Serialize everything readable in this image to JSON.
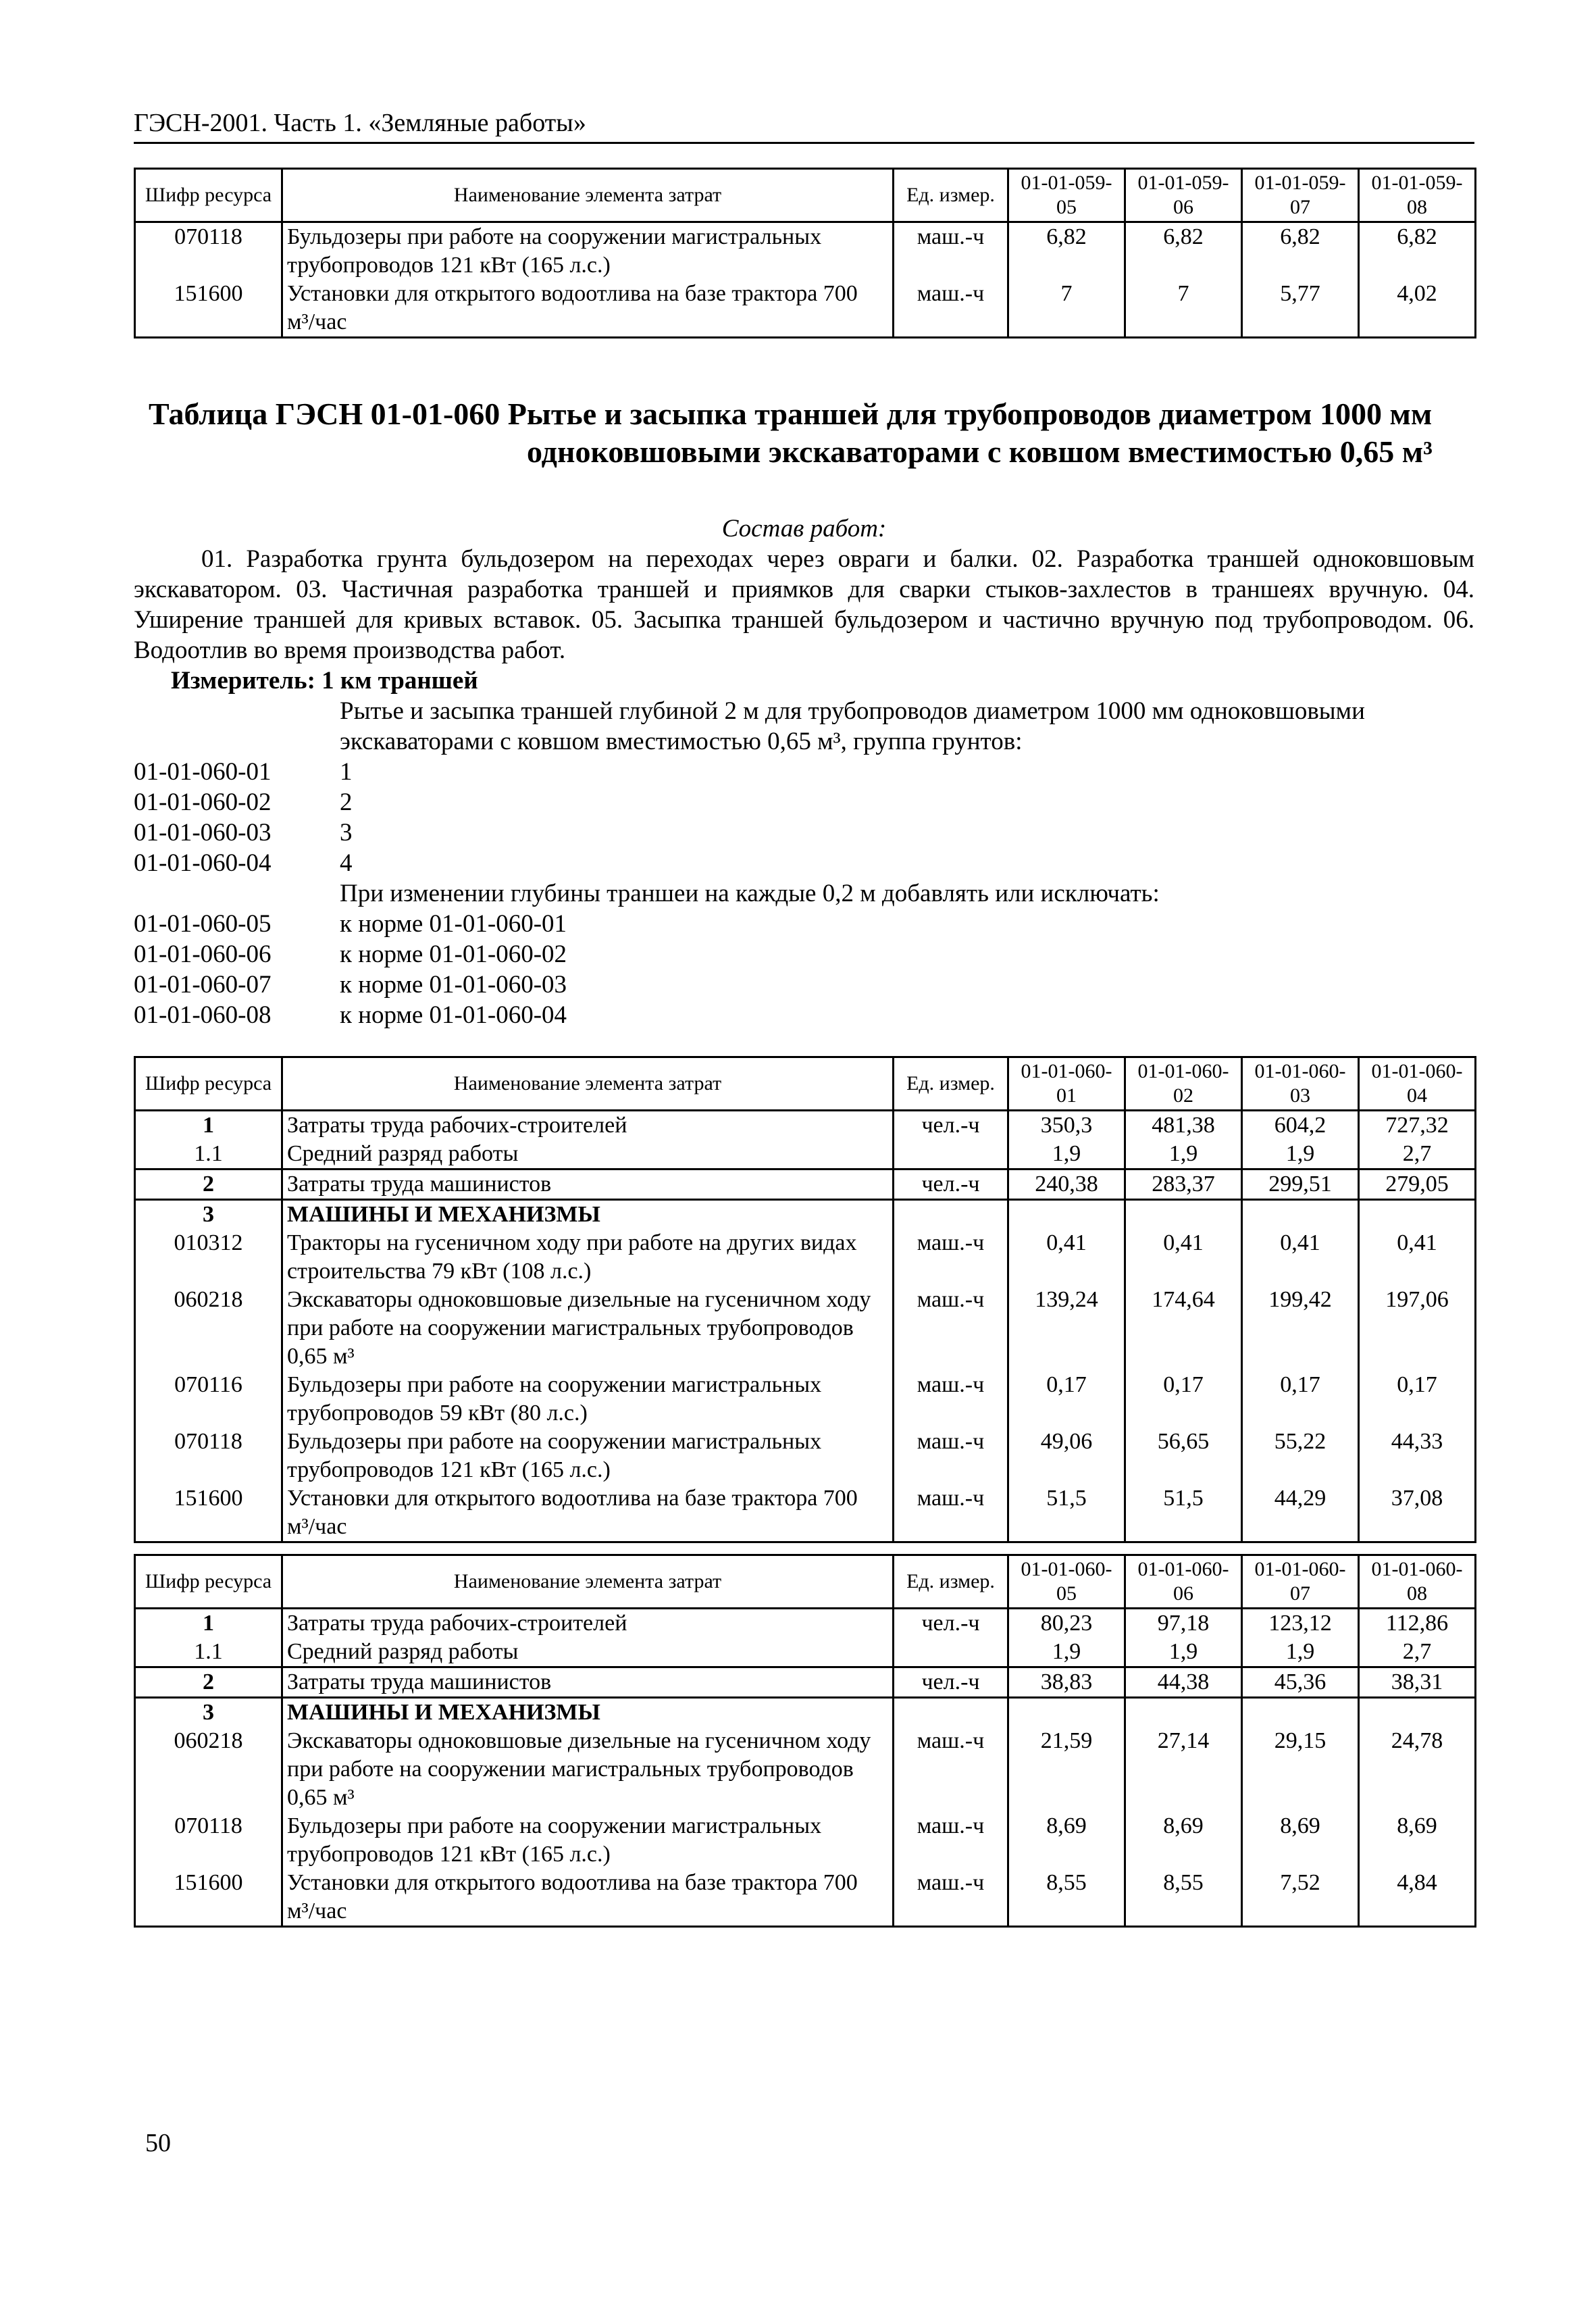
{
  "running_head": "ГЭСН-2001. Часть 1. «Земляные работы»",
  "table_header": {
    "code": "Шифр ресурса",
    "name": "Наименование элемента затрат",
    "unit": "Ед. измер."
  },
  "tables": [
    {
      "columns": [
        "01-01-059-05",
        "01-01-059-06",
        "01-01-059-07",
        "01-01-059-08"
      ],
      "groups": [
        {
          "rows": [
            {
              "code": "070118",
              "name": "Бульдозеры при работе на сооружении магистральных трубопроводов 121 кВт (165 л.с.)",
              "unit": "маш.-ч",
              "values": [
                "6,82",
                "6,82",
                "6,82",
                "6,82"
              ]
            },
            {
              "code": "151600",
              "name": "Установки для открытого водоотлива на базе трактора 700 м³/час",
              "unit": "маш.-ч",
              "values": [
                "7",
                "7",
                "5,77",
                "4,02"
              ]
            }
          ]
        }
      ]
    },
    {
      "columns": [
        "01-01-060-01",
        "01-01-060-02",
        "01-01-060-03",
        "01-01-060-04"
      ],
      "groups": [
        {
          "rows": [
            {
              "code": "1",
              "bold": true,
              "name": "Затраты труда рабочих-строителей",
              "unit": "чел.-ч",
              "values": [
                "350,3",
                "481,38",
                "604,2",
                "727,32"
              ]
            },
            {
              "code": "1.1",
              "name": "Средний разряд работы",
              "unit": "",
              "values": [
                "1,9",
                "1,9",
                "1,9",
                "2,7"
              ]
            }
          ]
        },
        {
          "rows": [
            {
              "code": "2",
              "bold": true,
              "name": "Затраты труда машинистов",
              "unit": "чел.-ч",
              "values": [
                "240,38",
                "283,37",
                "299,51",
                "279,05"
              ]
            }
          ]
        },
        {
          "rows": [
            {
              "code": "3",
              "bold": true,
              "name": "МАШИНЫ И МЕХАНИЗМЫ",
              "name_bold": true,
              "unit": "",
              "values": [
                "",
                "",
                "",
                ""
              ]
            },
            {
              "code": "010312",
              "name": "Тракторы на гусеничном ходу при работе на других видах строительства 79 кВт (108 л.с.)",
              "unit": "маш.-ч",
              "values": [
                "0,41",
                "0,41",
                "0,41",
                "0,41"
              ]
            },
            {
              "code": "060218",
              "name": "Экскаваторы одноковшовые дизельные на гусеничном ходу при работе на сооружении магистральных трубопроводов 0,65 м³",
              "unit": "маш.-ч",
              "values": [
                "139,24",
                "174,64",
                "199,42",
                "197,06"
              ]
            },
            {
              "code": "070116",
              "name": "Бульдозеры при работе на сооружении магистральных трубопроводов 59 кВт (80 л.с.)",
              "unit": "маш.-ч",
              "values": [
                "0,17",
                "0,17",
                "0,17",
                "0,17"
              ]
            },
            {
              "code": "070118",
              "name": "Бульдозеры при работе на сооружении магистральных трубопроводов 121 кВт (165 л.с.)",
              "unit": "маш.-ч",
              "values": [
                "49,06",
                "56,65",
                "55,22",
                "44,33"
              ]
            },
            {
              "code": "151600",
              "name": "Установки для открытого водоотлива на базе трактора 700 м³/час",
              "unit": "маш.-ч",
              "values": [
                "51,5",
                "51,5",
                "44,29",
                "37,08"
              ]
            }
          ]
        }
      ]
    },
    {
      "columns": [
        "01-01-060-05",
        "01-01-060-06",
        "01-01-060-07",
        "01-01-060-08"
      ],
      "groups": [
        {
          "rows": [
            {
              "code": "1",
              "bold": true,
              "name": "Затраты труда рабочих-строителей",
              "unit": "чел.-ч",
              "values": [
                "80,23",
                "97,18",
                "123,12",
                "112,86"
              ]
            },
            {
              "code": "1.1",
              "name": "Средний разряд работы",
              "unit": "",
              "values": [
                "1,9",
                "1,9",
                "1,9",
                "2,7"
              ]
            }
          ]
        },
        {
          "rows": [
            {
              "code": "2",
              "bold": true,
              "name": "Затраты труда машинистов",
              "unit": "чел.-ч",
              "values": [
                "38,83",
                "44,38",
                "45,36",
                "38,31"
              ]
            }
          ]
        },
        {
          "rows": [
            {
              "code": "3",
              "bold": true,
              "name": "МАШИНЫ И МЕХАНИЗМЫ",
              "name_bold": true,
              "unit": "",
              "values": [
                "",
                "",
                "",
                ""
              ]
            },
            {
              "code": "060218",
              "name": "Экскаваторы одноковшовые дизельные на гусеничном ходу при работе на сооружении магистральных трубопроводов 0,65 м³",
              "unit": "маш.-ч",
              "values": [
                "21,59",
                "27,14",
                "29,15",
                "24,78"
              ]
            },
            {
              "code": "070118",
              "name": "Бульдозеры при работе на сооружении магистральных трубопроводов 121 кВт (165 л.с.)",
              "unit": "маш.-ч",
              "values": [
                "8,69",
                "8,69",
                "8,69",
                "8,69"
              ]
            },
            {
              "code": "151600",
              "name": "Установки для открытого водоотлива на базе трактора 700 м³/час",
              "unit": "маш.-ч",
              "values": [
                "8,55",
                "8,55",
                "7,52",
                "4,84"
              ]
            }
          ]
        }
      ]
    }
  ],
  "title": "Таблица ГЭСН 01-01-060 Рытье и засыпка траншей для трубопроводов диаметром 1000 мм одноковшовыми экскаваторами с ковшом вместимостью 0,65 м³",
  "sostav_label": "Состав работ:",
  "sostav_text": "01. Разработка грунта бульдозером на переходах через овраги и балки. 02. Разработка траншей одноковшовым экскаватором. 03. Частичная разработка траншей и приямков для сварки стыков-захлестов в траншеях вручную. 04. Уширение траншей для кривых вставок. 05. Засыпка траншей бульдозером и частично вручную под трубопроводом. 06. Водоотлив во время производства работ.",
  "meter": "Измеритель: 1 км траншей",
  "desc1": "Рытье и засыпка траншей глубиной 2 м для трубопроводов диаметром 1000 мм одноковшовыми экскаваторами с ковшом вместимостью 0,65 м³, группа грунтов:",
  "list1": [
    {
      "code": "01-01-060-01",
      "text": "1"
    },
    {
      "code": "01-01-060-02",
      "text": "2"
    },
    {
      "code": "01-01-060-03",
      "text": "3"
    },
    {
      "code": "01-01-060-04",
      "text": "4"
    }
  ],
  "desc2": "При изменении глубины траншеи на каждые 0,2 м добавлять или исключать:",
  "list2": [
    {
      "code": "01-01-060-05",
      "text": "к норме 01-01-060-01"
    },
    {
      "code": "01-01-060-06",
      "text": "к норме 01-01-060-02"
    },
    {
      "code": "01-01-060-07",
      "text": "к норме 01-01-060-03"
    },
    {
      "code": "01-01-060-08",
      "text": "к норме 01-01-060-04"
    }
  ],
  "page_number": "50"
}
